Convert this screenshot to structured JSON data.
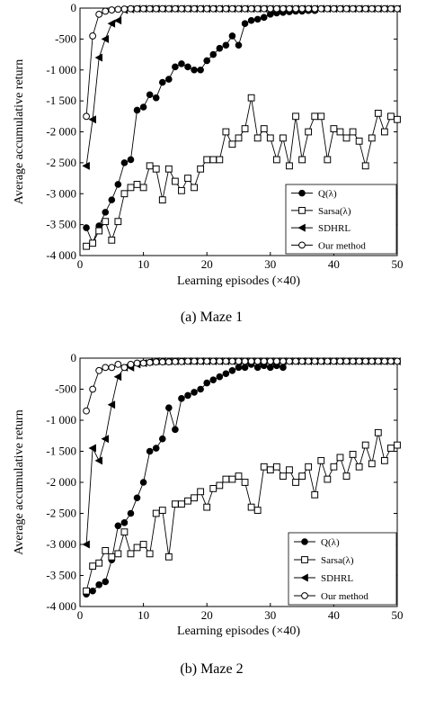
{
  "chart_data": [
    {
      "type": "line",
      "caption": "(a) Maze 1",
      "xlabel": "Learning episodes (×40)",
      "ylabel": "Average accumulative return",
      "xlim": [
        0,
        50
      ],
      "ylim": [
        -4000,
        0
      ],
      "xticks": [
        "0",
        "10",
        "20",
        "30",
        "40",
        "50"
      ],
      "yticks": [
        "-4 000",
        "-3 500",
        "-3 000",
        "-2 500",
        "-2 000",
        "-1 500",
        "-1 000",
        "-500",
        "0"
      ],
      "legend": "bottom-right",
      "series": [
        {
          "name": "Q(λ)",
          "marker": "filled-circle",
          "x": [
            1,
            2,
            3,
            4,
            5,
            6,
            7,
            8,
            9,
            10,
            11,
            12,
            13,
            14,
            15,
            16,
            17,
            18,
            19,
            20,
            21,
            22,
            23,
            24,
            25,
            26,
            27,
            28,
            29,
            30,
            31,
            32,
            33,
            34,
            35,
            36,
            37
          ],
          "y": [
            -3550,
            -3800,
            -3520,
            -3300,
            -3100,
            -2850,
            -2500,
            -2450,
            -1650,
            -1600,
            -1400,
            -1450,
            -1200,
            -1150,
            -950,
            -900,
            -950,
            -1000,
            -1000,
            -850,
            -750,
            -650,
            -600,
            -450,
            -600,
            -250,
            -200,
            -180,
            -150,
            -100,
            -80,
            -70,
            -60,
            -50,
            -50,
            -40,
            -40
          ]
        },
        {
          "name": "Sarsa(λ)",
          "marker": "open-square",
          "x": [
            1,
            2,
            3,
            4,
            5,
            6,
            7,
            8,
            9,
            10,
            11,
            12,
            13,
            14,
            15,
            16,
            17,
            18,
            19,
            20,
            21,
            22,
            23,
            24,
            25,
            26,
            27,
            28,
            29,
            30,
            31,
            32,
            33,
            34,
            35,
            36,
            37,
            38,
            39,
            40,
            41,
            42,
            43,
            44,
            45,
            46,
            47,
            48,
            49,
            50
          ],
          "y": [
            -3850,
            -3800,
            -3600,
            -3450,
            -3750,
            -3450,
            -3000,
            -2900,
            -2850,
            -2900,
            -2550,
            -2600,
            -3100,
            -2600,
            -2800,
            -2950,
            -2750,
            -2900,
            -2600,
            -2450,
            -2450,
            -2450,
            -2000,
            -2200,
            -2100,
            -1950,
            -1450,
            -2100,
            -1950,
            -2100,
            -2450,
            -2100,
            -2550,
            -1750,
            -2450,
            -2000,
            -1750,
            -1750,
            -2450,
            -1950,
            -2000,
            -2100,
            -2000,
            -2150,
            -2550,
            -2100,
            -1700,
            -2000,
            -1750,
            -1800
          ]
        },
        {
          "name": "SDHRL",
          "marker": "filled-triangle-left",
          "x": [
            1,
            2,
            3,
            4,
            5,
            6,
            7,
            8,
            9,
            10,
            11,
            12,
            13,
            14,
            15,
            16,
            17,
            18,
            19,
            20,
            21,
            22,
            23,
            24,
            25,
            26,
            27,
            28,
            29,
            30,
            31,
            32,
            33,
            34,
            35,
            36,
            37,
            38,
            39,
            40,
            41,
            42,
            43,
            44,
            45,
            46,
            47,
            48,
            49,
            50
          ],
          "y": [
            -2550,
            -1800,
            -800,
            -500,
            -250,
            -200,
            -30,
            -20,
            -10,
            -10,
            -10,
            -10,
            -10,
            -10,
            -10,
            -10,
            -10,
            -10,
            -10,
            -10,
            -10,
            -10,
            -10,
            -10,
            -10,
            -10,
            -10,
            -10,
            -10,
            -10,
            -10,
            -10,
            -10,
            -10,
            -10,
            -10,
            -10,
            -10,
            -10,
            -10,
            -10,
            -10,
            -10,
            -10,
            -10,
            -10,
            -10,
            -10,
            -10,
            -10
          ]
        },
        {
          "name": "Our method",
          "marker": "open-circle",
          "x": [
            1,
            2,
            3,
            4,
            5,
            6,
            7,
            8,
            9,
            10,
            11,
            12,
            13,
            14,
            15,
            16,
            17,
            18,
            19,
            20,
            21,
            22,
            23,
            24,
            25,
            26,
            27,
            28,
            29,
            30,
            31,
            32,
            33,
            34,
            35,
            36,
            37,
            38,
            39,
            40,
            41,
            42,
            43,
            44,
            45,
            46,
            47,
            48,
            49,
            50
          ],
          "y": [
            -1750,
            -450,
            -100,
            -50,
            -30,
            -20,
            -15,
            -10,
            -10,
            -10,
            -10,
            -10,
            -10,
            -10,
            -10,
            -10,
            -10,
            -10,
            -10,
            -10,
            -10,
            -10,
            -10,
            -10,
            -10,
            -10,
            -10,
            -10,
            -10,
            -10,
            -10,
            -10,
            -10,
            -10,
            -10,
            -10,
            -10,
            -10,
            -10,
            -10,
            -10,
            -10,
            -10,
            -10,
            -10,
            -10,
            -10,
            -10,
            -10,
            -10
          ]
        }
      ]
    },
    {
      "type": "line",
      "caption": "(b) Maze 2",
      "xlabel": "Learning episodes (×40)",
      "ylabel": "Average accumulative return",
      "xlim": [
        0,
        50
      ],
      "ylim": [
        -4000,
        0
      ],
      "xticks": [
        "0",
        "10",
        "20",
        "30",
        "40",
        "50"
      ],
      "yticks": [
        "-4 000",
        "-3 500",
        "-3 000",
        "-2 500",
        "-2 000",
        "-1 500",
        "-1 000",
        "-500",
        "0"
      ],
      "legend": "bottom-right",
      "series": [
        {
          "name": "Q(λ)",
          "marker": "filled-circle",
          "x": [
            1,
            2,
            3,
            4,
            5,
            6,
            7,
            8,
            9,
            10,
            11,
            12,
            13,
            14,
            15,
            16,
            17,
            18,
            19,
            20,
            21,
            22,
            23,
            24,
            25,
            26,
            27,
            28,
            29,
            30,
            31,
            32
          ],
          "y": [
            -3800,
            -3750,
            -3650,
            -3600,
            -3250,
            -2700,
            -2650,
            -2500,
            -2250,
            -2000,
            -1500,
            -1450,
            -1300,
            -800,
            -1150,
            -650,
            -600,
            -550,
            -500,
            -400,
            -350,
            -300,
            -250,
            -200,
            -150,
            -150,
            -100,
            -150,
            -120,
            -150,
            -120,
            -150
          ]
        },
        {
          "name": "Sarsa(λ)",
          "marker": "open-square",
          "x": [
            1,
            2,
            3,
            4,
            5,
            6,
            7,
            8,
            9,
            10,
            11,
            12,
            13,
            14,
            15,
            16,
            17,
            18,
            19,
            20,
            21,
            22,
            23,
            24,
            25,
            26,
            27,
            28,
            29,
            30,
            31,
            32,
            33,
            34,
            35,
            36,
            37,
            38,
            39,
            40,
            41,
            42,
            43,
            44,
            45,
            46,
            47,
            48,
            49,
            50
          ],
          "y": [
            -3750,
            -3350,
            -3300,
            -3100,
            -3200,
            -3150,
            -2800,
            -3150,
            -3050,
            -3000,
            -3150,
            -2500,
            -2450,
            -3200,
            -2350,
            -2350,
            -2300,
            -2250,
            -2150,
            -2400,
            -2100,
            -2050,
            -1950,
            -1950,
            -1900,
            -2000,
            -2400,
            -2450,
            -1750,
            -1800,
            -1750,
            -1900,
            -1800,
            -2000,
            -1900,
            -1750,
            -2200,
            -1650,
            -1950,
            -1750,
            -1600,
            -1900,
            -1550,
            -1750,
            -1400,
            -1700,
            -1200,
            -1650,
            -1450,
            -1400
          ]
        },
        {
          "name": "SDHRL",
          "marker": "filled-triangle-left",
          "x": [
            1,
            2,
            3,
            4,
            5,
            6,
            7,
            8,
            9,
            10,
            11,
            12,
            13,
            14,
            15,
            16,
            17,
            18,
            19,
            20,
            21,
            22,
            23,
            24,
            25,
            26,
            27,
            28,
            29,
            30,
            31,
            32,
            33,
            34,
            35,
            36,
            37,
            38,
            39,
            40,
            41,
            42,
            43,
            44,
            45,
            46,
            47,
            48,
            49,
            50
          ],
          "y": [
            -3000,
            -1450,
            -1650,
            -1300,
            -750,
            -300,
            -150,
            -150,
            -100,
            -80,
            -60,
            -50,
            -50,
            -50,
            -50,
            -50,
            -50,
            -50,
            -50,
            -50,
            -50,
            -50,
            -50,
            -50,
            -50,
            -50,
            -50,
            -50,
            -50,
            -50,
            -50,
            -50,
            -50,
            -50,
            -50,
            -50,
            -50,
            -50,
            -50,
            -50,
            -50,
            -50,
            -50,
            -50,
            -50,
            -50,
            -50,
            -50,
            -50,
            -50
          ]
        },
        {
          "name": "Our method",
          "marker": "open-circle",
          "x": [
            1,
            2,
            3,
            4,
            5,
            6,
            7,
            8,
            9,
            10,
            11,
            12,
            13,
            14,
            15,
            16,
            17,
            18,
            19,
            20,
            21,
            22,
            23,
            24,
            25,
            26,
            27,
            28,
            29,
            30,
            31,
            32,
            33,
            34,
            35,
            36,
            37,
            38,
            39,
            40,
            41,
            42,
            43,
            44,
            45,
            46,
            47,
            48,
            49,
            50
          ],
          "y": [
            -850,
            -500,
            -200,
            -150,
            -150,
            -100,
            -150,
            -100,
            -80,
            -80,
            -70,
            -60,
            -60,
            -60,
            -55,
            -55,
            -50,
            -50,
            -50,
            -50,
            -50,
            -50,
            -50,
            -50,
            -50,
            -50,
            -50,
            -50,
            -50,
            -50,
            -50,
            -50,
            -50,
            -50,
            -50,
            -50,
            -50,
            -50,
            -50,
            -50,
            -50,
            -50,
            -50,
            -50,
            -50,
            -50,
            -50,
            -50,
            -50,
            -50
          ]
        }
      ]
    }
  ]
}
